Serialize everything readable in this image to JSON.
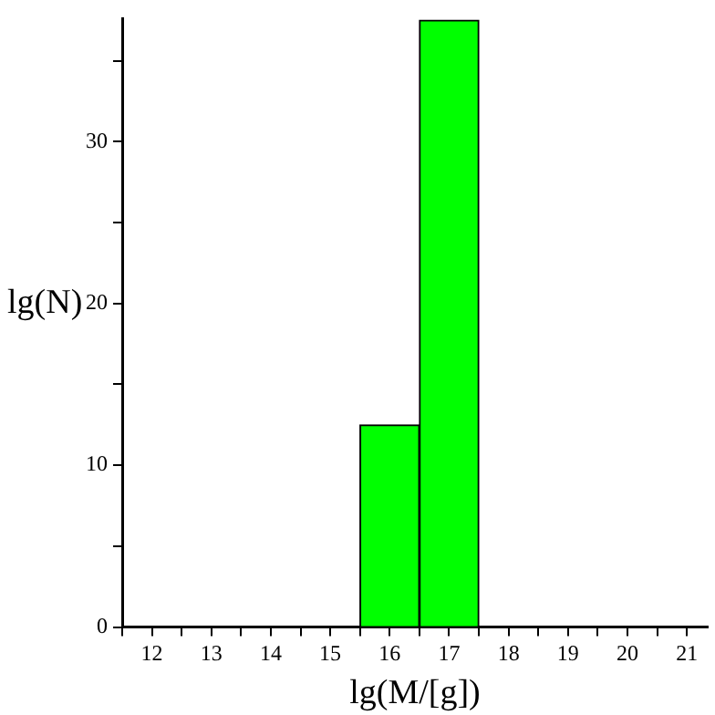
{
  "chart_data": {
    "type": "histogram",
    "xlabel": "lg(M/[g])",
    "ylabel": "lg(N)",
    "bins": [
      15.5,
      16.5,
      17.5
    ],
    "values": [
      12.5,
      37.5
    ],
    "color": "#00ff00",
    "xlim": [
      11.5,
      21.35
    ],
    "ylim": [
      0,
      37.6
    ],
    "xticks": [
      {
        "value": 11.5,
        "label": null
      },
      12,
      {
        "value": 12.5,
        "label": null
      },
      13,
      {
        "value": 13.5,
        "label": null
      },
      14,
      {
        "value": 14.5,
        "label": null
      },
      15,
      {
        "value": 15.5,
        "label": null
      },
      16,
      {
        "value": 16.5,
        "label": null
      },
      17,
      {
        "value": 17.5,
        "label": null
      },
      18,
      {
        "value": 18.5,
        "label": null
      },
      19,
      {
        "value": 19.5,
        "label": null
      },
      20,
      {
        "value": 20.5,
        "label": null
      },
      21
    ],
    "yticks": [
      0,
      {
        "value": 5,
        "label": null
      },
      10,
      {
        "value": 15,
        "label": null
      },
      20,
      {
        "value": 25,
        "label": null
      },
      30,
      {
        "value": 35,
        "label": null
      }
    ],
    "grid": false,
    "legend": false
  }
}
